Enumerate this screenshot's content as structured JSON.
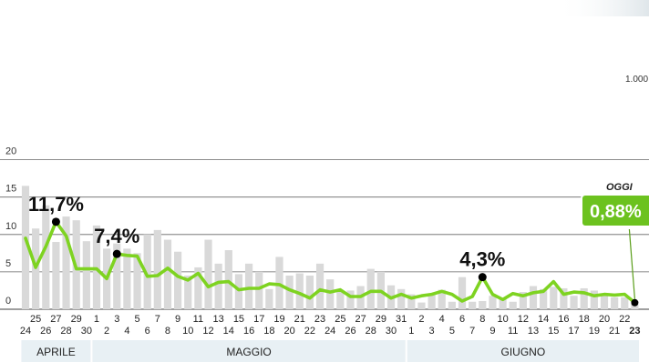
{
  "chart_data": {
    "type": "bar",
    "x": [
      "24",
      "25",
      "26",
      "27",
      "28",
      "29",
      "30",
      "1",
      "2",
      "3",
      "4",
      "5",
      "6",
      "7",
      "8",
      "9",
      "10",
      "11",
      "12",
      "13",
      "14",
      "15",
      "16",
      "17",
      "18",
      "19",
      "20",
      "21",
      "22",
      "23",
      "24",
      "25",
      "26",
      "27",
      "28",
      "29",
      "30",
      "31",
      "1",
      "2",
      "3",
      "4",
      "5",
      "6",
      "7",
      "8",
      "9",
      "10",
      "11",
      "12",
      "13",
      "14",
      "15",
      "16",
      "17",
      "18",
      "19",
      "20",
      "21",
      "22",
      "23"
    ],
    "x_tick_labels": [
      "24",
      "25",
      "26",
      "27",
      "28",
      "29",
      "30",
      "1",
      "2",
      "3",
      "4",
      "5",
      "6",
      "7",
      "8",
      "9",
      "10",
      "11",
      "12",
      "13",
      "14",
      "15",
      "16",
      "17",
      "18",
      "19",
      "20",
      "21",
      "22",
      "23",
      "24",
      "25",
      "26",
      "27",
      "28",
      "29",
      "30",
      "31",
      "1",
      "2",
      "3",
      "4",
      "5",
      "6",
      "7",
      "8",
      "9",
      "10",
      "11",
      "12",
      "13",
      "14",
      "15",
      "16",
      "17",
      "18",
      "19",
      "20",
      "21",
      "22",
      "23"
    ],
    "months": [
      {
        "label": "APRILE",
        "from": 0,
        "to": 6
      },
      {
        "label": "MAGGIO",
        "from": 7,
        "to": 37
      },
      {
        "label": "GIUGNO",
        "from": 38,
        "to": 60
      }
    ],
    "ylim": [
      0,
      20
    ],
    "y_ticks": [
      0,
      5,
      10,
      15,
      20
    ],
    "series": [
      {
        "values": [
          16.5,
          10.8,
          13.9,
          9.0,
          12.4,
          11.9,
          9.1,
          11.2,
          8.1,
          8.8,
          8.1,
          7.5,
          10.0,
          10.6,
          9.3,
          7.7,
          4.5,
          5.6,
          9.3,
          6.1,
          7.9,
          4.7,
          6.1,
          5.0,
          2.7,
          7.0,
          4.5,
          4.8,
          4.5,
          6.1,
          4.0,
          2.5,
          2.5,
          3.1,
          5.4,
          5.0,
          3.2,
          2.7,
          2.0,
          0.9,
          2.0,
          2.6,
          1.0,
          4.3,
          1.0,
          1.1,
          1.8,
          1.5,
          1.0,
          2.3,
          3.1,
          2.7,
          3.0,
          2.8,
          1.8,
          2.8,
          2.5,
          2.0,
          1.6,
          1.6,
          0.7
        ]
      },
      {
        "values": [
          9.5,
          5.6,
          8.4,
          11.7,
          9.8,
          5.4,
          5.4,
          5.4,
          4.1,
          7.4,
          7.2,
          7.1,
          4.4,
          4.5,
          5.5,
          4.4,
          3.9,
          4.8,
          3.0,
          3.6,
          3.7,
          2.6,
          2.8,
          2.8,
          3.4,
          3.3,
          2.6,
          2.1,
          1.5,
          2.6,
          2.3,
          2.6,
          1.7,
          1.7,
          2.4,
          2.4,
          1.5,
          2.0,
          1.5,
          1.8,
          2.0,
          2.4,
          2.0,
          1.1,
          1.7,
          4.3,
          2.0,
          1.3,
          2.1,
          1.8,
          2.2,
          2.4,
          3.7,
          2.0,
          2.3,
          2.2,
          1.8,
          2.0,
          1.9,
          2.0,
          0.88
        ]
      }
    ],
    "annotations": [
      {
        "index": 3,
        "text": "11,7%"
      },
      {
        "index": 9,
        "text": "7,4%"
      },
      {
        "index": 45,
        "text": "4,3%"
      }
    ],
    "today": {
      "index": 60,
      "label": "OGGI",
      "value": "0,88%"
    },
    "secondary_axis_ticks": [
      "1.000"
    ],
    "grid": true,
    "colors": {
      "bars": "#d9d9d9",
      "line": "#7ed321",
      "dots": "#000000",
      "month_band": "#e8f0f4",
      "badge": "#6cc21f"
    }
  }
}
